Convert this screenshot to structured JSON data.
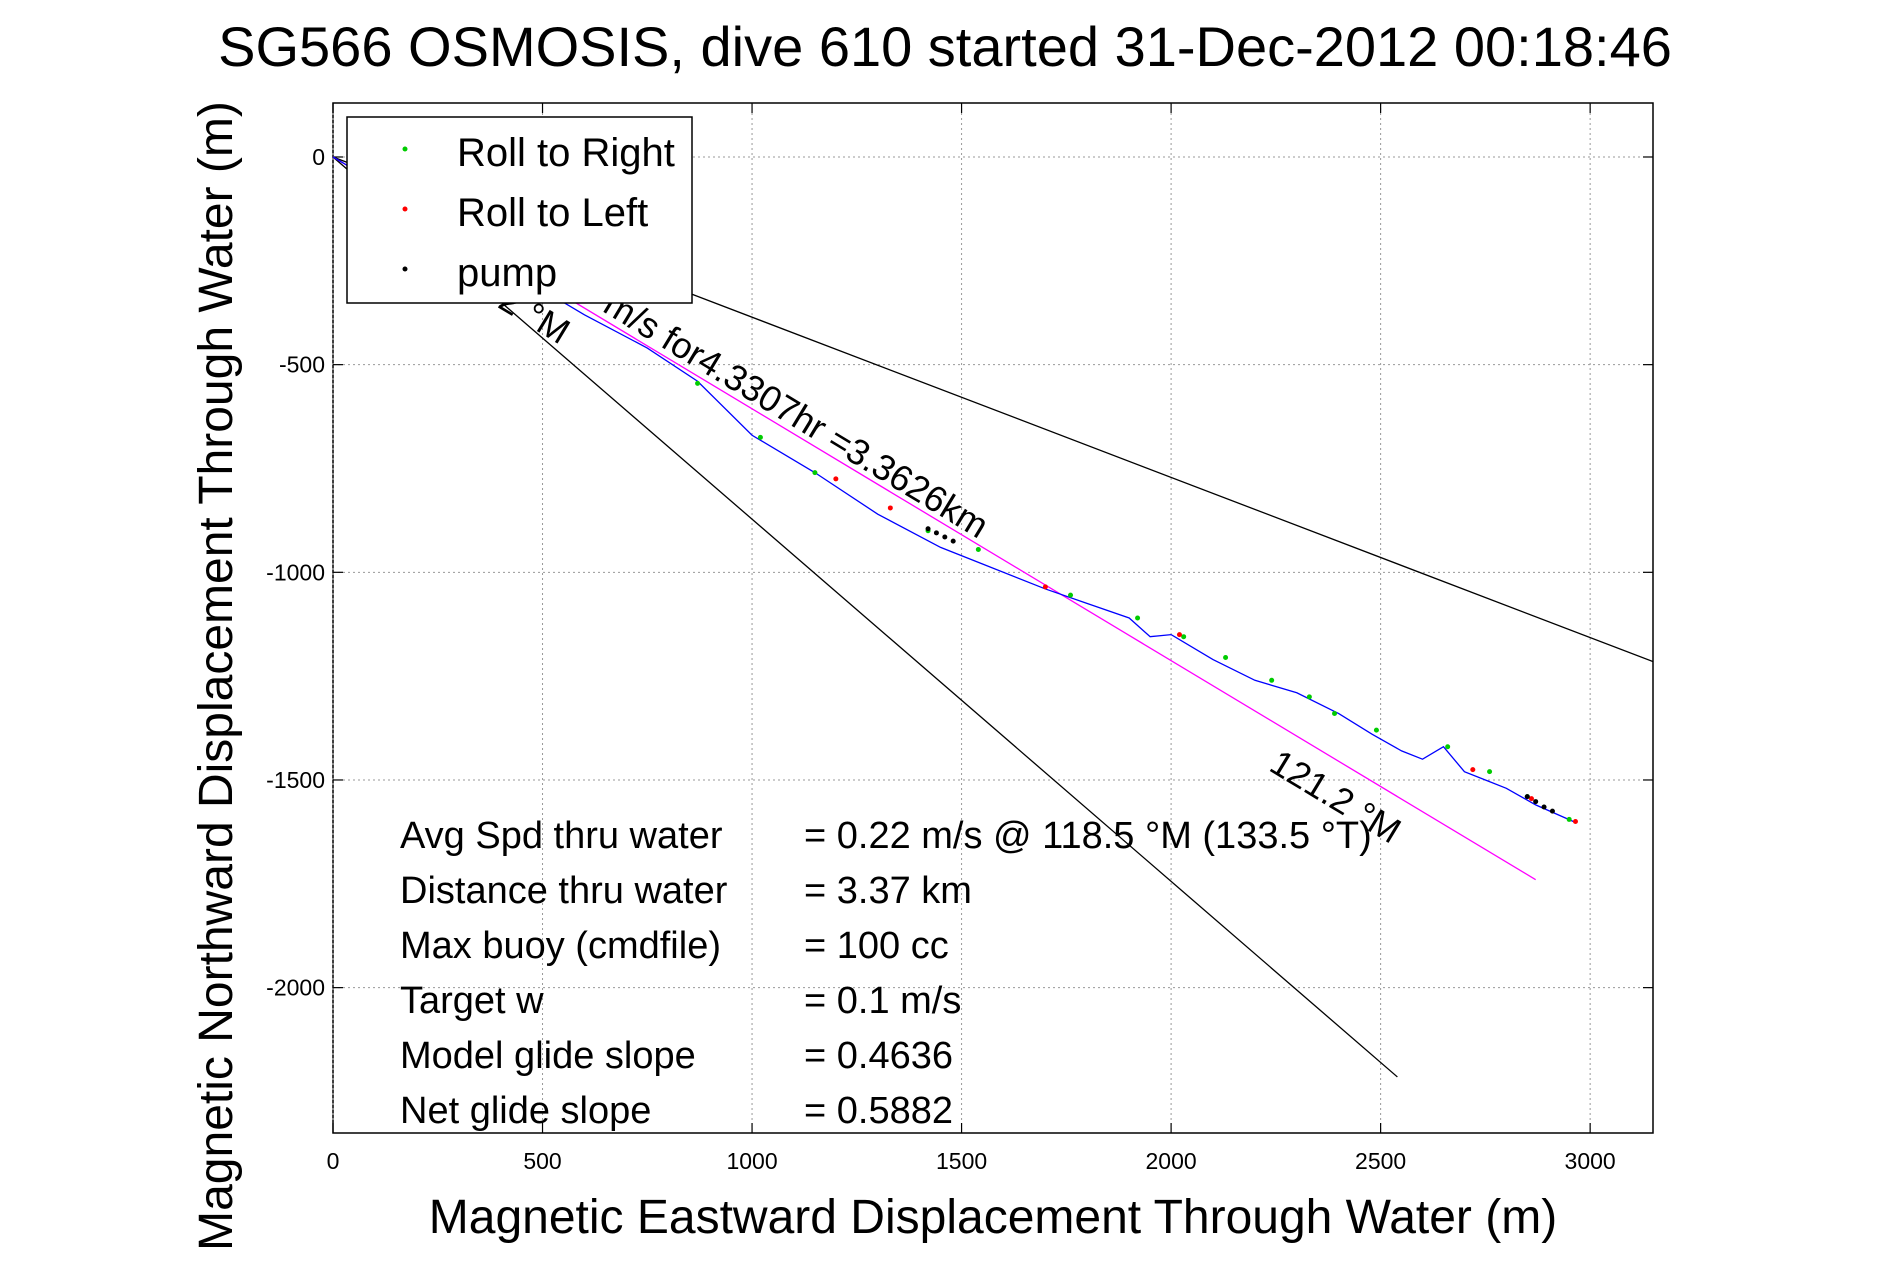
{
  "chart_data": {
    "type": "line",
    "title": "SG566 OSMOSIS, dive 610 started 31-Dec-2012 00:18:46",
    "xlabel": "Magnetic Eastward Displacement Through Water (m)",
    "ylabel": "Magnetic Northward Displacement Through Water (m)",
    "xlim": [
      0,
      3150
    ],
    "ylim": [
      -2350,
      130
    ],
    "xticks": [
      0,
      500,
      1000,
      1500,
      2000,
      2500,
      3000
    ],
    "yticks": [
      0,
      -500,
      -1000,
      -1500,
      -2000
    ],
    "grid": true,
    "legend_position": "top-left",
    "legend": [
      {
        "label": "Roll to Right",
        "color": "#00cc00"
      },
      {
        "label": "Roll to Left",
        "color": "#ff0000"
      },
      {
        "label": "pump",
        "color": "#000000"
      }
    ],
    "lines": {
      "heading_line_upper": {
        "color": "#000000",
        "x": [
          0,
          3150
        ],
        "y": [
          0,
          -1215
        ]
      },
      "heading_line_lower": {
        "color": "#000000",
        "x": [
          0,
          2540
        ],
        "y": [
          0,
          -2215
        ]
      },
      "mean_heading_line": {
        "color": "#ff00ff",
        "x": [
          0,
          2870
        ],
        "y": [
          0,
          -1740
        ]
      }
    },
    "track": {
      "color": "#0000ff",
      "x": [
        0,
        150,
        300,
        450,
        600,
        750,
        870,
        1000,
        1150,
        1300,
        1450,
        1550,
        1700,
        1800,
        1900,
        1950,
        2000,
        2100,
        2200,
        2300,
        2400,
        2480,
        2550,
        2600,
        2650,
        2700,
        2750,
        2800,
        2870,
        2960
      ],
      "y": [
        0,
        -90,
        -185,
        -290,
        -380,
        -460,
        -540,
        -670,
        -760,
        -860,
        -940,
        -980,
        -1040,
        -1075,
        -1110,
        -1155,
        -1150,
        -1210,
        -1260,
        -1290,
        -1340,
        -1390,
        -1430,
        -1450,
        -1420,
        -1480,
        -1500,
        -1520,
        -1560,
        -1600
      ]
    },
    "roll_right_points": {
      "x": [
        870,
        1020,
        1150,
        1420,
        1540,
        1760,
        1920,
        2030,
        2130,
        2240,
        2330,
        2390,
        2490,
        2660,
        2760,
        2850,
        2950
      ],
      "y": [
        -545,
        -675,
        -760,
        -900,
        -945,
        -1055,
        -1110,
        -1155,
        -1205,
        -1260,
        -1300,
        -1340,
        -1380,
        -1420,
        -1480,
        -1540,
        -1595
      ]
    },
    "roll_left_points": {
      "x": [
        1200,
        1330,
        1700,
        2020,
        2720,
        2860,
        2965
      ],
      "y": [
        -775,
        -845,
        -1035,
        -1150,
        -1475,
        -1545,
        -1600
      ]
    },
    "pump_points": {
      "x": [
        1420,
        1440,
        1460,
        1480,
        2850,
        2870,
        2890,
        2910
      ],
      "y": [
        -895,
        -905,
        -915,
        -925,
        -1540,
        -1552,
        -1565,
        -1575
      ]
    },
    "annotations": [
      {
        "text": "m/s for4.3307hr =3.3626km",
        "x": 640,
        "y": -370,
        "rotate": 31.2
      },
      {
        "text": "2 °M",
        "x": 390,
        "y": -360,
        "rotate": 31.2
      },
      {
        "text": "121.2 °M",
        "x": 2230,
        "y": -1475,
        "rotate": 31.2
      }
    ],
    "stats": [
      {
        "label": "Avg Spd thru water",
        "value": "=  0.22 m/s @ 118.5 °M (133.5 °T)"
      },
      {
        "label": "Distance thru water",
        "value": "=  3.37 km"
      },
      {
        "label": "Max buoy (cmdfile)",
        "value": "= 100 cc"
      },
      {
        "label": "Target w",
        "value": "= 0.1 m/s"
      },
      {
        "label": "Model glide slope",
        "value": "= 0.4636"
      },
      {
        "label": "Net glide slope",
        "value": "= 0.5882"
      }
    ]
  }
}
